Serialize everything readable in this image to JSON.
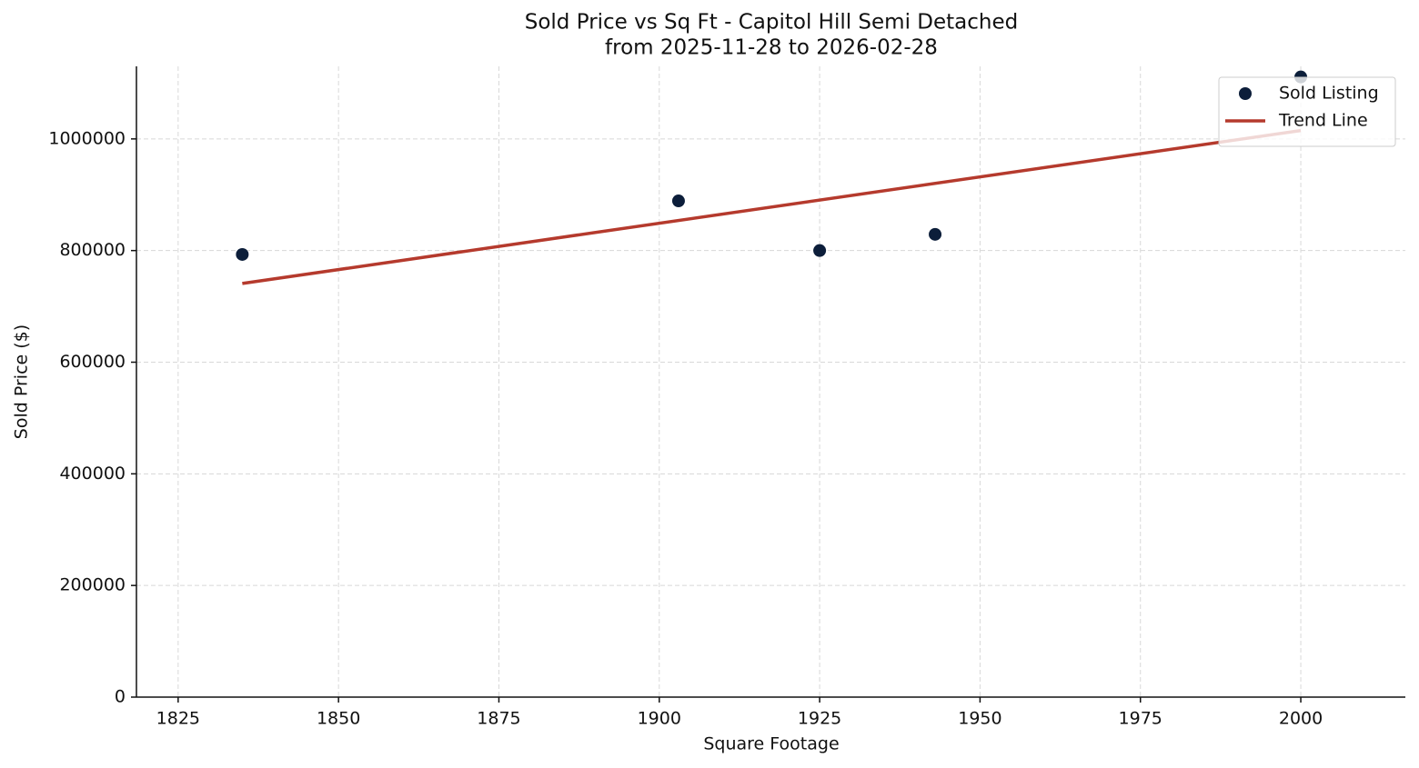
{
  "chart_data": {
    "type": "scatter",
    "title": "Sold Price vs Sq Ft - Capitol Hill Semi Detached",
    "subtitle": "from 2025-11-28 to 2026-02-28",
    "x_label": "Square Footage",
    "y_label": "Sold Price ($)",
    "series": [
      {
        "name": "Sold Listing",
        "type": "scatter",
        "color": "#0c1e3a",
        "x": [
          1835,
          1903,
          1925,
          1943,
          2000
        ],
        "values": [
          793000,
          889000,
          800000,
          829000,
          1111000
        ]
      },
      {
        "name": "Trend Line",
        "type": "line",
        "color": "#b53a2d",
        "x": [
          1835,
          2000
        ],
        "values": [
          741000,
          1015000
        ]
      }
    ],
    "xlim": [
      1818.5,
      2016.3
    ],
    "xticks": [
      1825,
      1850,
      1875,
      1900,
      1925,
      1950,
      1975,
      2000
    ],
    "ylim": [
      0,
      1130000
    ],
    "yticks": [
      0,
      200000,
      400000,
      600000,
      800000,
      1000000
    ],
    "grid": true,
    "legend": "upper-right"
  }
}
